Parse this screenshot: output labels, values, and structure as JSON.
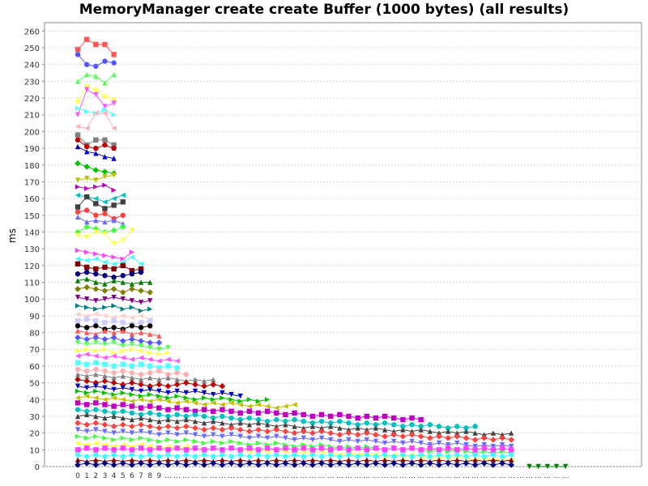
{
  "chart_data": {
    "type": "line",
    "title": "MemoryManager create create Buffer (1000 bytes) (all results)",
    "xlabel": "",
    "ylabel": "ms",
    "ylim": [
      0,
      265
    ],
    "yticks": [
      0,
      10,
      20,
      30,
      40,
      50,
      60,
      70,
      80,
      90,
      100,
      110,
      120,
      130,
      140,
      150,
      160,
      170,
      180,
      190,
      200,
      210,
      220,
      230,
      240,
      250,
      260
    ],
    "x_tick_labels": [
      "0",
      "1",
      "2",
      "3",
      "4",
      "5",
      "6",
      "7",
      "8",
      "9",
      "…",
      "…",
      "…",
      "…",
      "…",
      "…",
      "…",
      "…",
      "…",
      "…",
      "…",
      "…",
      "…",
      "…",
      "…",
      "…",
      "…",
      "…",
      "…",
      "…",
      "…",
      "…",
      "…",
      "…",
      "…",
      "…",
      "…",
      "…",
      "…",
      "…",
      "…",
      "…",
      "…",
      "…",
      "…",
      "…",
      "…",
      "…",
      "…",
      "…",
      "…",
      "…",
      "…",
      "…",
      "…"
    ],
    "grid": true,
    "legend": "none",
    "series_colors": [
      "#ff5555",
      "#5555ff",
      "#55ff55",
      "#ffff55",
      "#ff55ff",
      "#55ffff",
      "#ffafaf",
      "#808080",
      "#c00000",
      "#0000c0",
      "#00c000",
      "#c0c000",
      "#c000c0",
      "#00c0c0",
      "#404040",
      "#ff4040",
      "#6a6aff",
      "#40ff40",
      "#ffff40",
      "#ff40ff",
      "#40ffff",
      "#800000",
      "#000080",
      "#008000",
      "#808000",
      "#800080",
      "#008080",
      "#ffcccc",
      "#ccccff",
      "#000000"
    ],
    "series": [
      {
        "values": [
          249,
          255,
          252,
          252,
          246
        ]
      },
      {
        "values": [
          246,
          240,
          239,
          242,
          241
        ]
      },
      {
        "values": [
          230,
          234,
          233,
          229,
          234
        ]
      },
      {
        "values": [
          218,
          227,
          225,
          221,
          219
        ]
      },
      {
        "values": [
          210,
          225,
          222,
          215,
          217
        ]
      },
      {
        "values": [
          214,
          212,
          211,
          213,
          210
        ]
      },
      {
        "values": [
          203,
          202,
          211,
          211,
          202
        ]
      },
      {
        "values": [
          198,
          192,
          195,
          195,
          192
        ]
      },
      {
        "values": [
          195,
          191,
          190,
          192,
          190
        ]
      },
      {
        "values": [
          191,
          188,
          187,
          185,
          184
        ]
      },
      {
        "values": [
          181,
          179,
          177,
          176,
          175
        ]
      },
      {
        "values": [
          171,
          172,
          171,
          173,
          174
        ]
      },
      {
        "values": [
          167,
          166,
          167,
          168,
          165
        ]
      },
      {
        "values": [
          162,
          161,
          160,
          158,
          160,
          162
        ]
      },
      {
        "values": [
          155,
          161,
          157,
          154,
          156,
          158
        ]
      },
      {
        "values": [
          152,
          153,
          150,
          151,
          148,
          150
        ]
      },
      {
        "values": [
          149,
          146,
          147,
          146,
          147,
          145
        ]
      },
      {
        "values": [
          140,
          143,
          142,
          140,
          141,
          143
        ]
      },
      {
        "values": [
          138,
          137,
          140,
          139,
          133,
          135,
          141
        ]
      },
      {
        "values": [
          129,
          128,
          127,
          126,
          125,
          124,
          128
        ]
      },
      {
        "values": [
          124,
          123,
          124,
          122,
          121,
          122,
          125,
          121
        ]
      },
      {
        "values": [
          121,
          119,
          118,
          119,
          118,
          120,
          117,
          118
        ]
      },
      {
        "values": [
          115,
          116,
          115,
          114,
          113,
          114,
          115,
          116
        ]
      },
      {
        "values": [
          111,
          112,
          110,
          109,
          111,
          110,
          109,
          110,
          110
        ]
      },
      {
        "values": [
          106,
          107,
          106,
          105,
          106,
          104,
          106,
          105,
          104
        ]
      },
      {
        "values": [
          101,
          100,
          99,
          100,
          101,
          100,
          99,
          98,
          99
        ]
      },
      {
        "values": [
          96,
          95,
          94,
          95,
          96,
          94,
          95,
          93,
          94
        ]
      },
      {
        "values": [
          91,
          90,
          91,
          90,
          89,
          90,
          89,
          90,
          88
        ]
      },
      {
        "values": [
          87,
          88,
          87,
          86,
          87,
          86,
          85,
          86,
          87
        ]
      },
      {
        "values": [
          84,
          83,
          84,
          82,
          83,
          82,
          84,
          83,
          84
        ]
      },
      {
        "values": [
          81,
          80,
          79,
          81,
          80,
          81,
          79,
          80,
          79,
          78
        ]
      },
      {
        "values": [
          77,
          76,
          77,
          76,
          77,
          75,
          76,
          75,
          74,
          74
        ]
      },
      {
        "values": [
          74,
          73,
          74,
          73,
          74,
          72,
          73,
          72,
          71,
          70,
          71
        ]
      },
      {
        "values": [
          69,
          70,
          69,
          70,
          68,
          69,
          70,
          69,
          68,
          67,
          68
        ]
      },
      {
        "values": [
          66,
          67,
          66,
          65,
          66,
          65,
          64,
          65,
          64,
          63,
          64,
          63
        ]
      },
      {
        "values": [
          62,
          61,
          62,
          61,
          60,
          61,
          60,
          61,
          60,
          59,
          60,
          59
        ]
      },
      {
        "values": [
          58,
          57,
          58,
          57,
          56,
          57,
          56,
          55,
          56,
          57,
          55,
          56,
          55
        ]
      },
      {
        "values": [
          55,
          54,
          55,
          54,
          53,
          54,
          53,
          52,
          53,
          52,
          53,
          52,
          51,
          52,
          51,
          52
        ]
      },
      {
        "values": [
          52,
          51,
          50,
          51,
          50,
          49,
          50,
          49,
          48,
          49,
          48,
          49,
          50,
          49,
          48,
          49,
          48
        ]
      },
      {
        "values": [
          48,
          47,
          48,
          47,
          46,
          47,
          46,
          45,
          46,
          45,
          44,
          45,
          44,
          45,
          44,
          43,
          44,
          43,
          42
        ]
      },
      {
        "values": [
          45,
          44,
          45,
          44,
          43,
          44,
          43,
          42,
          43,
          42,
          41,
          42,
          41,
          40,
          41,
          40,
          41,
          40,
          39,
          40,
          39,
          40
        ]
      },
      {
        "values": [
          41,
          42,
          41,
          40,
          41,
          40,
          39,
          40,
          39,
          40,
          39,
          38,
          39,
          38,
          37,
          38,
          37,
          38,
          37,
          36,
          37,
          36,
          35,
          36,
          37
        ]
      },
      {
        "values": [
          38,
          37,
          38,
          37,
          36,
          37,
          36,
          35,
          36,
          35,
          34,
          35,
          34,
          33,
          34,
          33,
          34,
          33,
          32,
          33,
          32,
          33,
          32,
          31,
          32,
          31,
          30,
          31,
          30,
          31,
          30,
          29,
          30,
          29,
          30,
          29,
          28,
          29,
          28
        ]
      },
      {
        "values": [
          34,
          33,
          34,
          33,
          32,
          33,
          32,
          31,
          32,
          31,
          30,
          31,
          30,
          31,
          30,
          29,
          30,
          29,
          28,
          29,
          28,
          27,
          28,
          27,
          28,
          27,
          26,
          27,
          26,
          27,
          26,
          25,
          26,
          25,
          26,
          25,
          24,
          25,
          24,
          25,
          24,
          23,
          24,
          23,
          24
        ]
      },
      {
        "values": [
          30,
          31,
          30,
          29,
          30,
          29,
          28,
          29,
          28,
          27,
          28,
          27,
          28,
          27,
          26,
          27,
          26,
          25,
          26,
          25,
          26,
          25,
          24,
          25,
          24,
          23,
          24,
          23,
          24,
          23,
          22,
          23,
          22,
          23,
          22,
          21,
          22,
          21,
          22,
          21,
          20,
          21,
          20,
          21,
          20,
          19,
          20,
          19,
          20
        ]
      },
      {
        "values": [
          26,
          25,
          26,
          25,
          24,
          25,
          24,
          25,
          24,
          23,
          24,
          23,
          24,
          23,
          22,
          23,
          22,
          23,
          22,
          21,
          22,
          21,
          22,
          21,
          20,
          21,
          20,
          21,
          20,
          19,
          20,
          19,
          20,
          19,
          18,
          19,
          18,
          19,
          18,
          17,
          18,
          17,
          18,
          17,
          16,
          17,
          16,
          17,
          16
        ]
      },
      {
        "values": [
          22,
          21,
          22,
          21,
          20,
          21,
          20,
          21,
          20,
          19,
          20,
          19,
          20,
          19,
          18,
          19,
          18,
          19,
          18,
          17,
          18,
          17,
          18,
          17,
          16,
          17,
          16,
          17,
          16,
          15,
          16,
          15,
          16,
          15,
          14,
          15,
          14,
          15,
          14,
          13,
          14,
          13,
          14,
          13,
          12,
          13,
          12,
          13,
          12
        ]
      },
      {
        "values": [
          18,
          17,
          18,
          17,
          16,
          17,
          16,
          17,
          16,
          15,
          16,
          15,
          16,
          15,
          14,
          15,
          14,
          15,
          14,
          13,
          14,
          13,
          14,
          13,
          12,
          13,
          12,
          13,
          12,
          11,
          12,
          11,
          12,
          11,
          10,
          11,
          10,
          11,
          10,
          9,
          10,
          9,
          10,
          9,
          8,
          9,
          8,
          9,
          8
        ]
      },
      {
        "values": [
          14,
          13,
          14,
          13,
          12,
          13,
          12,
          13,
          12,
          11,
          12,
          11,
          12,
          11,
          10,
          11,
          10,
          11,
          10,
          9,
          10,
          9,
          10,
          9,
          8,
          9,
          8,
          9,
          8,
          7,
          8,
          7,
          8,
          7,
          6,
          7,
          6,
          7,
          6,
          5,
          6,
          5,
          6,
          5,
          4,
          5,
          4,
          5,
          4
        ]
      },
      {
        "values": [
          10,
          11,
          10,
          11,
          10,
          11,
          10,
          11,
          10,
          11,
          10,
          11,
          10,
          11,
          10,
          11,
          10,
          11,
          10,
          11,
          10,
          11,
          10,
          11,
          10,
          11,
          10,
          11,
          10,
          11,
          10,
          11,
          10,
          11,
          10,
          11,
          10,
          11,
          10,
          11,
          10,
          11,
          10,
          11,
          10,
          11,
          10,
          11,
          10
        ]
      },
      {
        "values": [
          7,
          6,
          7,
          6,
          7,
          6,
          7,
          6,
          7,
          6,
          7,
          6,
          7,
          6,
          7,
          6,
          7,
          6,
          7,
          6,
          7,
          6,
          7,
          6,
          7,
          6,
          7,
          6,
          7,
          6,
          7,
          6,
          7,
          6,
          7,
          6,
          7,
          6,
          7,
          6,
          7,
          6,
          7,
          6,
          7,
          6,
          7,
          6,
          7
        ]
      },
      {
        "values": [
          4,
          3,
          4,
          3,
          4,
          3,
          4,
          3,
          4,
          3,
          4,
          3,
          4,
          3,
          4,
          3,
          4,
          3,
          4,
          3,
          4,
          3,
          4,
          3,
          4,
          3,
          4,
          3,
          4,
          3,
          4,
          3,
          4,
          3,
          4,
          3,
          4,
          3,
          4,
          3,
          4,
          3,
          4,
          3,
          4,
          3,
          4,
          3,
          4
        ]
      },
      {
        "values": [
          1,
          2,
          1,
          2,
          1,
          2,
          1,
          2,
          1,
          2,
          1,
          2,
          1,
          2,
          1,
          2,
          1,
          2,
          1,
          2,
          1,
          2,
          1,
          2,
          1,
          2,
          1,
          2,
          1,
          2,
          1,
          2,
          1,
          2,
          1,
          2,
          1,
          2,
          1,
          2,
          1,
          2,
          1,
          2,
          1,
          2,
          1,
          2,
          1
        ]
      },
      {
        "values": [
          null,
          null,
          null,
          null,
          null,
          null,
          null,
          null,
          null,
          null,
          null,
          null,
          null,
          null,
          null,
          null,
          null,
          null,
          null,
          null,
          null,
          null,
          null,
          null,
          null,
          null,
          null,
          null,
          null,
          null,
          null,
          null,
          null,
          null,
          null,
          null,
          null,
          null,
          null,
          null,
          null,
          null,
          null,
          null,
          null,
          null,
          null,
          null,
          null,
          null,
          0,
          0,
          0,
          0,
          0
        ]
      }
    ]
  }
}
